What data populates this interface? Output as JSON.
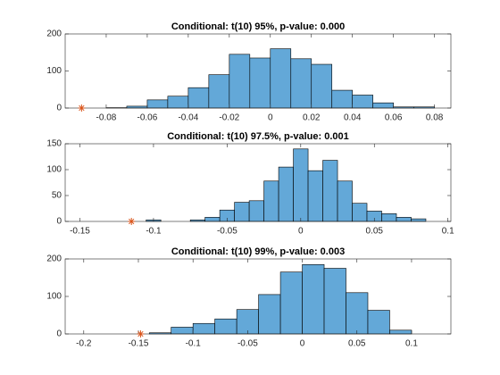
{
  "chart_data": [
    {
      "type": "histogram",
      "title": "Conditional: t(10) 95%, p-value: 0.000",
      "bins": [
        -0.08,
        -0.07,
        -0.06,
        -0.05,
        -0.04,
        -0.03,
        -0.02,
        -0.01,
        0,
        0.01,
        0.02,
        0.03,
        0.04,
        0.05,
        0.06,
        0.07,
        0.08
      ],
      "counts": [
        1,
        5,
        22,
        32,
        55,
        90,
        145,
        135,
        160,
        133,
        118,
        48,
        35,
        14,
        3,
        3
      ],
      "color": "#63a8d8",
      "marker": {
        "x": -0.092,
        "y": 0,
        "color": "#d95319"
      },
      "xlim": [
        -0.1,
        0.088
      ],
      "xticks": [
        -0.08,
        -0.06,
        -0.04,
        -0.02,
        0,
        0.02,
        0.04,
        0.06,
        0.08
      ],
      "ylim": [
        0,
        200
      ],
      "yticks": [
        0,
        100,
        200
      ]
    },
    {
      "type": "histogram",
      "title": "Conditional: t(10) 97.5%, p-value: 0.001",
      "bins": [
        -0.105,
        -0.095,
        -0.085,
        -0.075,
        -0.065,
        -0.055,
        -0.045,
        -0.035,
        -0.025,
        -0.015,
        -0.005,
        0.005,
        0.015,
        0.025,
        0.035,
        0.045,
        0.055,
        0.065,
        0.075,
        0.085,
        0.095
      ],
      "counts": [
        3,
        0,
        0,
        3,
        8,
        22,
        37,
        40,
        78,
        105,
        140,
        98,
        118,
        78,
        35,
        20,
        15,
        8,
        5,
        0
      ],
      "color": "#63a8d8",
      "marker": {
        "x": -0.115,
        "y": 0,
        "color": "#d95319"
      },
      "xlim": [
        -0.16,
        0.102
      ],
      "xticks": [
        -0.15,
        -0.1,
        -0.05,
        0,
        0.05,
        0.1
      ],
      "ylim": [
        0,
        150
      ],
      "yticks": [
        0,
        50,
        100,
        150
      ]
    },
    {
      "type": "histogram",
      "title": "Conditional: t(10) 99%, p-value: 0.003",
      "bins": [
        -0.14,
        -0.12,
        -0.1,
        -0.08,
        -0.06,
        -0.04,
        -0.02,
        0,
        0.02,
        0.04,
        0.06,
        0.08,
        0.1
      ],
      "counts": [
        3,
        18,
        28,
        40,
        65,
        105,
        165,
        185,
        175,
        110,
        63,
        10
      ],
      "color": "#63a8d8",
      "marker": {
        "x": -0.148,
        "y": 0,
        "color": "#d95319"
      },
      "xlim": [
        -0.217,
        0.136
      ],
      "xticks": [
        -0.2,
        -0.15,
        -0.1,
        -0.05,
        0,
        0.05,
        0.1
      ],
      "ylim": [
        0,
        200
      ],
      "yticks": [
        0,
        100,
        200
      ]
    }
  ]
}
